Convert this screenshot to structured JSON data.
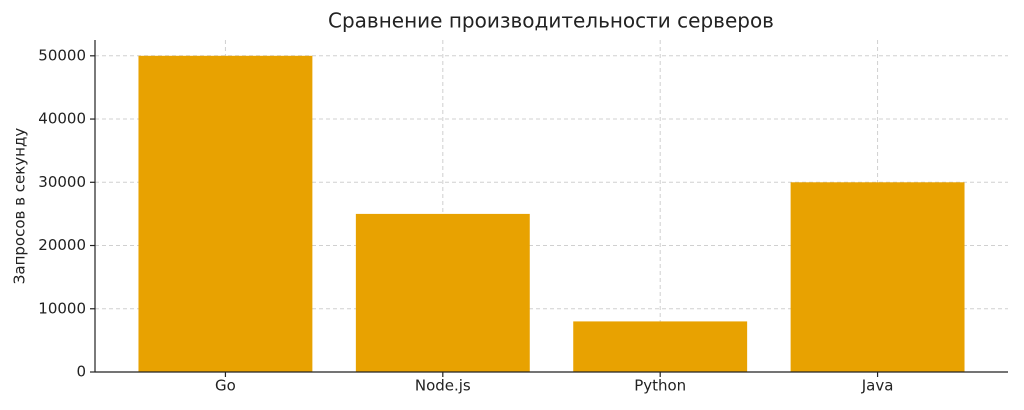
{
  "chart_data": {
    "type": "bar",
    "title": "Сравнение производительности серверов",
    "ylabel": "Запросов в секунду",
    "categories": [
      "Go",
      "Node.js",
      "Python",
      "Java"
    ],
    "values": [
      50000,
      25000,
      8000,
      30000
    ],
    "color": "#e8a201",
    "ylim": [
      0,
      52500
    ],
    "yticks": [
      0,
      10000,
      20000,
      30000,
      40000,
      50000
    ],
    "grid": true
  }
}
